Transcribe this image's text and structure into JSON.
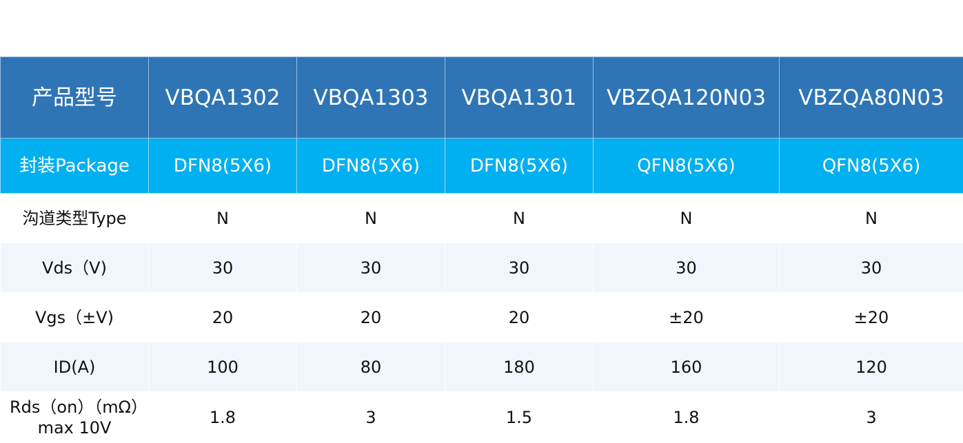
{
  "colors": {
    "header": "#2f74b5",
    "package_row": "#00b0f0",
    "alt_row": "#f1f6fc"
  },
  "header": {
    "label": "产品型号",
    "models": [
      "VBQA1302",
      "VBQA1303",
      "VBQA1301",
      "VBZQA120N03",
      "VBZQA80N03"
    ]
  },
  "rows": [
    {
      "label": "封装Package",
      "values": [
        "DFN8(5X6)",
        "DFN8(5X6)",
        "DFN8(5X6)",
        "QFN8(5X6)",
        "QFN8(5X6)"
      ]
    },
    {
      "label": "沟道类型Type",
      "values": [
        "N",
        "N",
        "N",
        "N",
        "N"
      ]
    },
    {
      "label": "Vds（V)",
      "values": [
        "30",
        "30",
        "30",
        "30",
        "30"
      ]
    },
    {
      "label": "Vgs（±V)",
      "values": [
        "20",
        "20",
        "20",
        "±20",
        "±20"
      ]
    },
    {
      "label": "ID(A)",
      "values": [
        "100",
        "80",
        "180",
        "160",
        "120"
      ]
    },
    {
      "label": "Rds（on）（mΩ）max 10V",
      "values": [
        "1.8",
        "3",
        "1.5",
        "1.8",
        "3"
      ]
    }
  ]
}
